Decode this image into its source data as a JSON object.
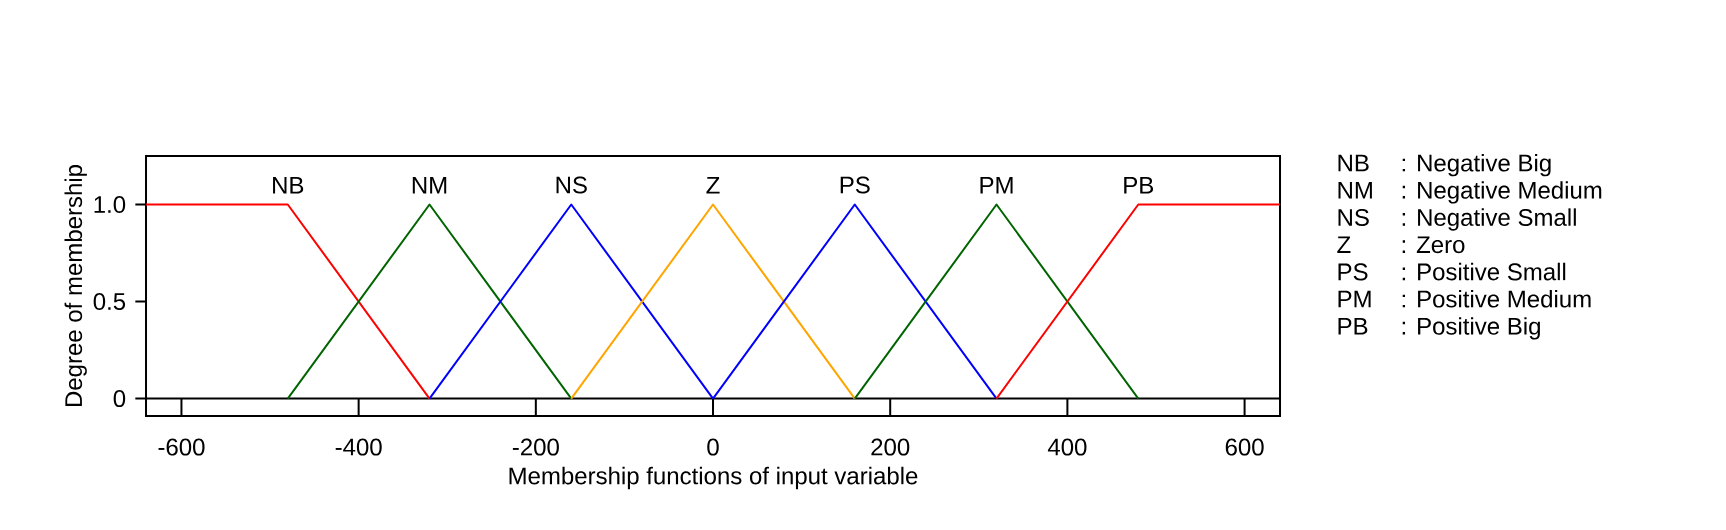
{
  "chart_data": {
    "type": "line",
    "xlabel": "Membership functions of input variable",
    "ylabel": "Degree of membership",
    "xlim": [
      -640,
      640
    ],
    "ylim": [
      -0.09,
      1.25
    ],
    "xticks": [
      -600,
      -400,
      -200,
      0,
      200,
      400,
      600
    ],
    "yticks": [
      0,
      {
        "value": 0.5,
        "label": "0.5"
      },
      {
        "value": 1,
        "label": "1.0"
      }
    ],
    "grid": false,
    "marker": "none",
    "line_style": "solid",
    "ref_lines": [
      {
        "axis": "y",
        "value": 0,
        "color": "#000000"
      }
    ],
    "series": [
      {
        "name": "NB",
        "color": "#ff0000",
        "x": [
          -640,
          -480,
          -320
        ],
        "values": [
          1,
          1,
          0
        ]
      },
      {
        "name": "NM",
        "color": "#006400",
        "x": [
          -480,
          -320,
          -160
        ],
        "values": [
          0,
          1,
          0
        ]
      },
      {
        "name": "NS",
        "color": "#0000ff",
        "x": [
          -320,
          -160,
          0
        ],
        "values": [
          0,
          1,
          0
        ]
      },
      {
        "name": "Z",
        "color": "#ffa500",
        "x": [
          -160,
          0,
          160
        ],
        "values": [
          0,
          1,
          0
        ]
      },
      {
        "name": "PS",
        "color": "#0000ff",
        "x": [
          0,
          160,
          320
        ],
        "values": [
          0,
          1,
          0
        ]
      },
      {
        "name": "PM",
        "color": "#006400",
        "x": [
          160,
          320,
          480
        ],
        "values": [
          0,
          1,
          0
        ]
      },
      {
        "name": "PB",
        "color": "#ff0000",
        "x": [
          320,
          480,
          640
        ],
        "values": [
          0,
          1,
          1
        ]
      }
    ],
    "annotations": [
      "NB",
      ": Negative Big",
      "NM",
      ": Negative Medium",
      "NS",
      ": Negative Small",
      "Z",
      ": Zero",
      "PS",
      ": Positive Small",
      "PM",
      ": Positive Medium",
      "PB",
      ": Positive Big"
    ]
  }
}
